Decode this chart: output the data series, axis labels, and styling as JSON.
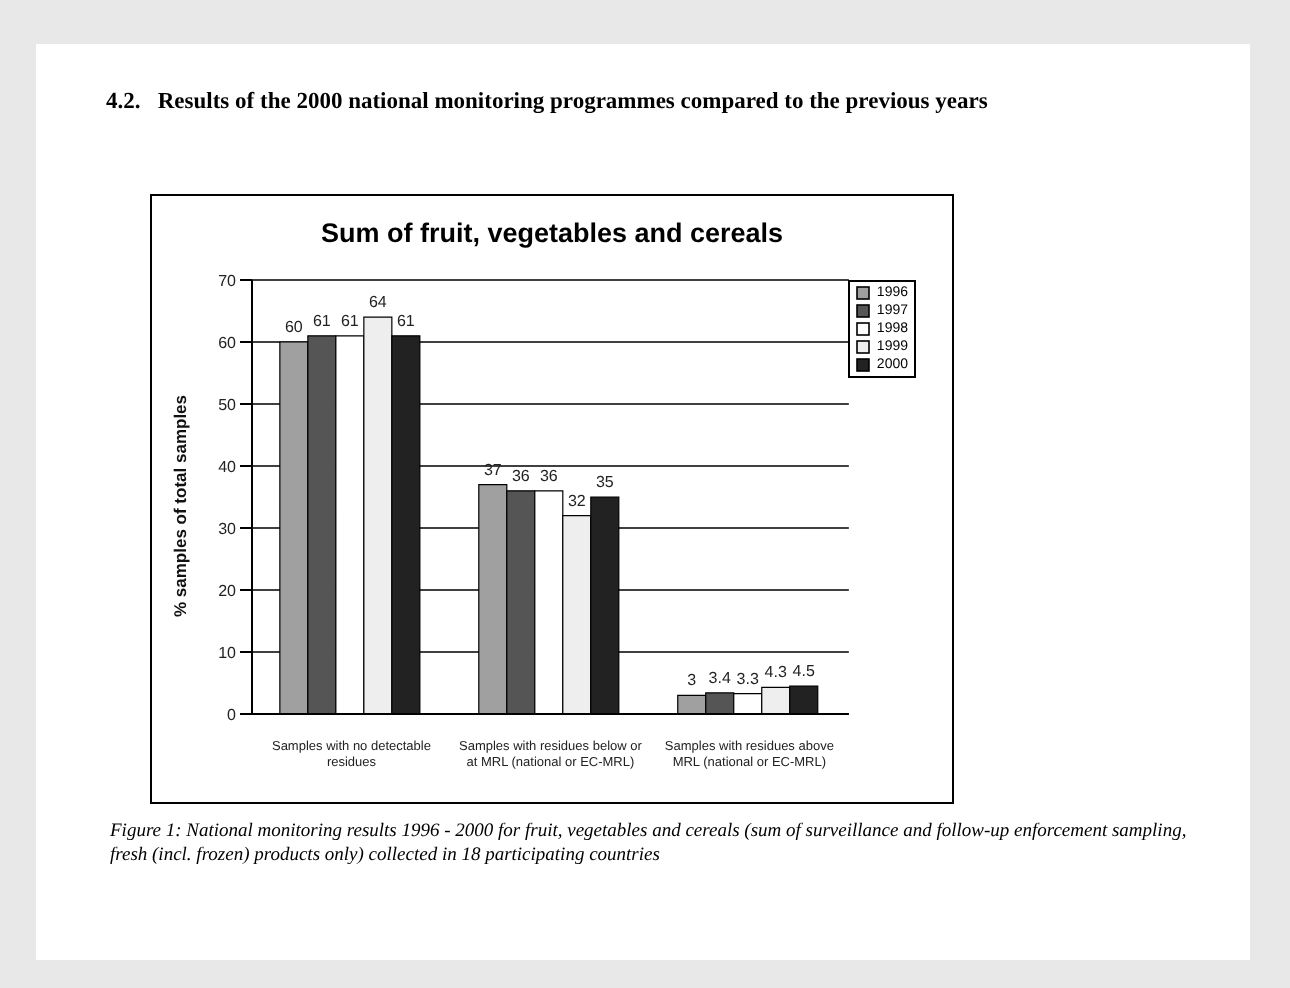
{
  "chart_data": {
    "type": "bar",
    "subtitle": "4.2.   Results of the 2000 national monitoring programmes compared to the previous years",
    "title": "Sum of fruit, vegetables and cereals",
    "ylabel": "% samples of total samples",
    "categories": [
      "Samples with no detectable residues",
      "Samples with residues below or at MRL (national or EC-MRL)",
      "Samples with residues above MRL (national or EC-MRL)"
    ],
    "series": [
      {
        "name": "1996",
        "color": "#a0a0a0",
        "values": [
          60,
          37,
          3
        ]
      },
      {
        "name": "1997",
        "color": "#555555",
        "values": [
          61,
          36,
          3.4
        ]
      },
      {
        "name": "1998",
        "color": "#ffffff",
        "values": [
          61,
          36,
          3.3
        ]
      },
      {
        "name": "1999",
        "color": "#eeeeee",
        "values": [
          64,
          32,
          4.3
        ]
      },
      {
        "name": "2000",
        "color": "#222222",
        "values": [
          61,
          35,
          4.5
        ]
      }
    ],
    "ylim": [
      0,
      70
    ],
    "yticks": [
      0,
      10,
      20,
      30,
      40,
      50,
      60,
      70
    ],
    "grid": "y",
    "legend": "top right",
    "data_labels": true,
    "annotations": [
      "Figure 1: National monitoring results 1996 - 2000 for fruit, vegetables and cereals (sum of surveillance and follow-up enforcement sampling, fresh (incl. frozen) products only) collected in 18 participating countries"
    ]
  }
}
